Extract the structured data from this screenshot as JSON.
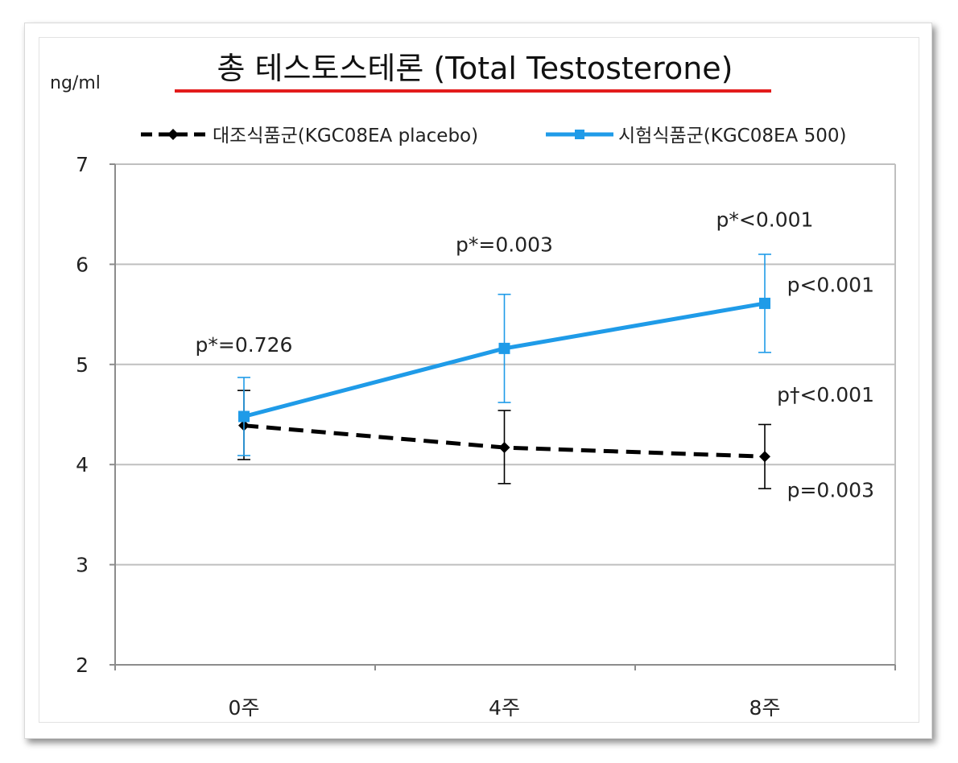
{
  "chart_data": {
    "type": "line",
    "title": "총 테스토스테론 (Total Testosterone)",
    "ylabel": "ng/ml",
    "categories": [
      "0주",
      "4주",
      "8주"
    ],
    "ylim": [
      2,
      7
    ],
    "yticks": [
      2,
      3,
      4,
      5,
      6,
      7
    ],
    "grid": true,
    "legend_position": "top",
    "series": [
      {
        "name": "대조식품군(KGC08EA placebo)",
        "color": "#000000",
        "style": "dashed",
        "marker": "diamond",
        "values": [
          4.39,
          4.17,
          4.08
        ],
        "error_low": [
          4.05,
          3.81,
          3.76
        ],
        "error_high": [
          4.74,
          4.54,
          4.4
        ]
      },
      {
        "name": "시험식품군(KGC08EA 500)",
        "color": "#1f9be8",
        "style": "solid",
        "marker": "square",
        "values": [
          4.48,
          5.16,
          5.61
        ],
        "error_low": [
          4.09,
          4.62,
          5.12
        ],
        "error_high": [
          4.87,
          5.7,
          6.1
        ]
      }
    ],
    "annotations": [
      {
        "text": "p*=0.726",
        "x": "0주",
        "y": 5.2
      },
      {
        "text": "p*=0.003",
        "x": "4주",
        "y": 6.2
      },
      {
        "text": "p*<0.001",
        "x": "8주",
        "y": 6.45
      },
      {
        "text": "p<0.001",
        "x": "8주",
        "y": 5.8
      },
      {
        "text": "p†<0.001",
        "x": "8주",
        "y": 4.7
      },
      {
        "text": "p=0.003",
        "x": "8주",
        "y": 3.75
      }
    ]
  }
}
